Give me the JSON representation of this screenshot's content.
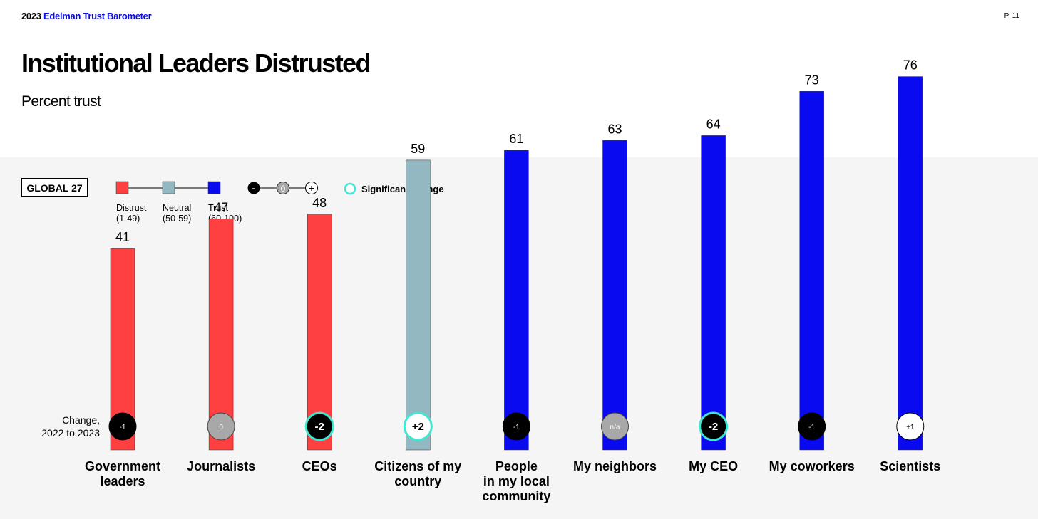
{
  "header": {
    "year": "2023",
    "brand": "Edelman Trust Barometer",
    "page": "P. 11"
  },
  "title": "Institutional Leaders Distrusted",
  "subtitle": "Percent trust",
  "global_label": "GLOBAL 27",
  "legend": {
    "distrust": {
      "label": "Distrust",
      "range": "(1-49)",
      "color": "#ff4040"
    },
    "neutral": {
      "label": "Neutral",
      "range": "(50-59)",
      "color": "#93b8c1"
    },
    "trust": {
      "label": "Trust",
      "range": "(60-100)",
      "color": "#0a0af0"
    },
    "change_symbols": [
      "-",
      "0",
      "+"
    ],
    "significant_change": "Significant change",
    "significant_color": "#3ee8d2"
  },
  "change_label": "Change,\n2022 to 2023",
  "chart_data": {
    "type": "bar",
    "title": "Institutional Leaders Distrusted",
    "subtitle": "Percent trust",
    "ylim": [
      0,
      100
    ],
    "grid": false,
    "categories": [
      "Government\nleaders",
      "Journalists",
      "CEOs",
      "Citizens of my\ncountry",
      "People\nin my local\ncommunity",
      "My neighbors",
      "My CEO",
      "My coworkers",
      "Scientists"
    ],
    "values": [
      41,
      47,
      48,
      59,
      61,
      63,
      64,
      73,
      76
    ],
    "change": [
      "-1",
      "0",
      "-2",
      "+2",
      "-1",
      "n/a",
      "-2",
      "-1",
      "+1"
    ],
    "significant": [
      false,
      false,
      true,
      true,
      false,
      false,
      true,
      false,
      false
    ]
  }
}
